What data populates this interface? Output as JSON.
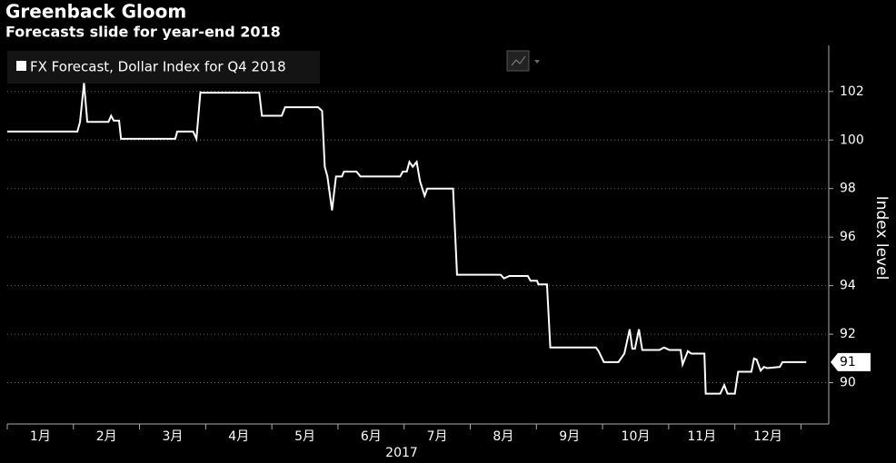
{
  "chart_data": {
    "type": "line",
    "title": "Greenback Gloom",
    "subtitle": "Forecasts slide for year-end 2018",
    "y_label": "Index level",
    "x_label": "2017",
    "months": [
      "1月",
      "2月",
      "3月",
      "4月",
      "5月",
      "6月",
      "7月",
      "8月",
      "9月",
      "10月",
      "11月",
      "12月"
    ],
    "xlim": [
      0,
      12.42
    ],
    "xticks": [
      0,
      1,
      2,
      3,
      4,
      5,
      6,
      7,
      8,
      9,
      10,
      11,
      12
    ],
    "ylim": [
      88.3,
      103.9
    ],
    "yticks": [
      90,
      92,
      94,
      96,
      98,
      100,
      102
    ],
    "grid": true,
    "series": [
      {
        "name": "FX Forecast, Dollar Index for Q4 2018",
        "color": "#ffffff",
        "x": [
          0,
          1.06,
          1.1,
          1.16,
          1.21,
          1.53,
          1.57,
          1.61,
          1.69,
          1.72,
          2.54,
          2.57,
          2.81,
          2.86,
          2.92,
          2.94,
          3.81,
          3.85,
          4.15,
          4.2,
          4.7,
          4.76,
          4.8,
          4.84,
          4.91,
          4.97,
          5.06,
          5.09,
          5.28,
          5.34,
          5.94,
          5.98,
          6.04,
          6.08,
          6.13,
          6.19,
          6.24,
          6.31,
          6.35,
          6.74,
          6.8,
          7.46,
          7.51,
          7.59,
          7.87,
          7.91,
          8.01,
          8.03,
          8.16,
          8.21,
          8.9,
          8.94,
          9.02,
          9.24,
          9.33,
          9.41,
          9.45,
          9.49,
          9.55,
          9.6,
          9.86,
          9.93,
          10.01,
          10.18,
          10.21,
          10.29,
          10.34,
          10.54,
          10.56,
          10.78,
          10.84,
          10.89,
          11.0,
          11.05,
          11.25,
          11.29,
          11.33,
          11.39,
          11.44,
          11.49,
          11.68,
          11.72,
          12.08
        ],
        "values": [
          100.35,
          100.35,
          100.75,
          102.35,
          100.75,
          100.75,
          101.0,
          100.8,
          100.8,
          100.05,
          100.05,
          100.35,
          100.35,
          100.05,
          101.97,
          101.95,
          101.95,
          101.0,
          101.0,
          101.35,
          101.35,
          101.2,
          98.9,
          98.5,
          97.1,
          98.5,
          98.5,
          98.7,
          98.7,
          98.5,
          98.5,
          98.7,
          98.7,
          99.1,
          98.9,
          99.1,
          98.3,
          97.7,
          98.0,
          98.0,
          94.45,
          94.45,
          94.3,
          94.4,
          94.4,
          94.2,
          94.2,
          94.05,
          94.05,
          91.45,
          91.45,
          91.3,
          90.85,
          90.85,
          91.2,
          92.2,
          91.4,
          91.4,
          92.2,
          91.35,
          91.35,
          91.45,
          91.35,
          91.35,
          90.75,
          91.3,
          91.2,
          91.2,
          89.55,
          89.55,
          89.9,
          89.55,
          89.55,
          90.45,
          90.45,
          91.0,
          90.95,
          90.5,
          90.65,
          90.6,
          90.65,
          90.85,
          90.85
        ],
        "last_value_label": "91"
      }
    ]
  }
}
